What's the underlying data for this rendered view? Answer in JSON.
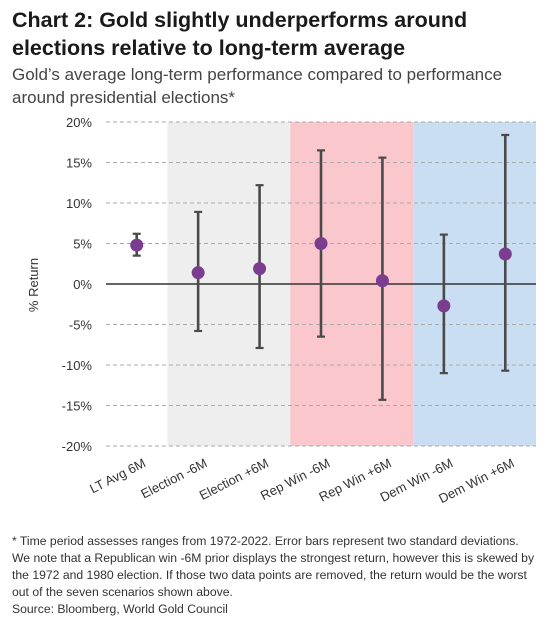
{
  "title": "Chart 2: Gold slightly underperforms around elections relative to long-term average",
  "subtitle": "Gold’s average long-term performance compared to performance around presidential elections*",
  "chart_data": {
    "type": "scatter",
    "title": "Chart 2: Gold slightly underperforms around elections relative to long-term average",
    "subtitle": "Gold’s average long-term performance compared to performance around presidential elections*",
    "ylabel": "% Return",
    "xlabel": "",
    "ylim": [
      -20,
      20
    ],
    "yticks": [
      20,
      15,
      10,
      5,
      0,
      -5,
      -10,
      -15,
      -20
    ],
    "ytick_labels": [
      "20%",
      "15%",
      "10%",
      "5%",
      "0%",
      "-5%",
      "-10%",
      "-15%",
      "-20%"
    ],
    "grid": "horizontal dashed",
    "categories": [
      "LT Avg 6M",
      "Election -6M",
      "Election +6M",
      "Rep Win -6M",
      "Rep Win +6M",
      "Dem Win -6M",
      "Dem Win +6M"
    ],
    "values": [
      4.8,
      1.4,
      1.9,
      5.0,
      0.4,
      -2.7,
      3.7
    ],
    "error_high": [
      6.2,
      8.9,
      12.2,
      16.5,
      15.6,
      6.1,
      18.4
    ],
    "error_low": [
      3.5,
      -5.8,
      -7.9,
      -6.5,
      -14.3,
      -11.0,
      -10.7
    ],
    "bands": [
      {
        "from": 1,
        "to": 2,
        "color": "#eeeeee"
      },
      {
        "from": 3,
        "to": 4,
        "color": "#f9c7cc"
      },
      {
        "from": 5,
        "to": 6,
        "color": "#c9def2"
      }
    ],
    "colors": {
      "marker": "#7a3d8f",
      "error_bar": "#4a4a4a",
      "zero_line": "#333333",
      "grid": "#aaaaaa"
    }
  },
  "footnote": {
    "text": "* Time period assesses ranges from 1972-2022. Error bars represent two standard deviations. We note that a Republican win -6M prior displays the strongest return, however this is skewed by the 1972 and 1980 election. If those two data points are removed, the return would be the worst out of the seven scenarios shown above.",
    "source": "Source: Bloomberg, World Gold Council"
  }
}
